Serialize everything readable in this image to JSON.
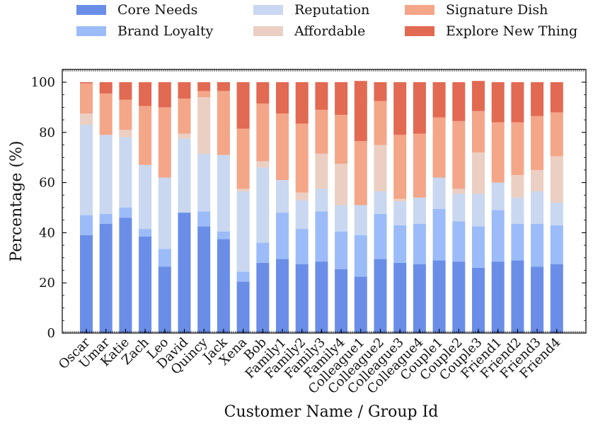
{
  "chart_data": {
    "type": "bar",
    "stacked": true,
    "title": "",
    "xlabel": "Customer Name / Group Id",
    "ylabel": "Percentage (%)",
    "ylim": [
      0,
      100
    ],
    "yticks": [
      0,
      20,
      40,
      60,
      80,
      100
    ],
    "grid": false,
    "legend_position": "top",
    "categories": [
      "Oscar",
      "Umar",
      "Katie",
      "Zach",
      "Leo",
      "David",
      "Quincy",
      "Jack",
      "Xena",
      "Bob",
      "Family1",
      "Family2",
      "Family3",
      "Family4",
      "Colleague1",
      "Colleague2",
      "Colleague3",
      "Colleague4",
      "Couple1",
      "Couple2",
      "Couple3",
      "Friend1",
      "Friend2",
      "Friend3",
      "Friend4"
    ],
    "series": [
      {
        "name": "Core Needs",
        "color": "#6a8ee8",
        "values": [
          39.0,
          43.5,
          46.0,
          38.5,
          26.5,
          48.0,
          42.5,
          37.5,
          20.5,
          28.0,
          29.5,
          27.5,
          28.5,
          25.5,
          22.5,
          29.5,
          28.0,
          27.5,
          29.0,
          28.5,
          26.0,
          28.5,
          29.0,
          26.5,
          27.5
        ]
      },
      {
        "name": "Brand Loyalty",
        "color": "#9bbcf9",
        "values": [
          8.0,
          4.0,
          4.0,
          3.0,
          7.0,
          0,
          6.0,
          3.0,
          4.0,
          8.0,
          18.5,
          14.0,
          20.0,
          15.0,
          16.5,
          18.0,
          15.0,
          16.0,
          20.5,
          16.0,
          16.5,
          20.5,
          14.5,
          17.0,
          15.5
        ]
      },
      {
        "name": "Reputation",
        "color": "#c9d7f0",
        "values": [
          36.0,
          31.5,
          28.0,
          25.5,
          28.5,
          29.5,
          23.0,
          30.5,
          32.0,
          30.0,
          13.0,
          11.5,
          9.0,
          10.5,
          12.0,
          9.0,
          9.5,
          10.5,
          12.5,
          11.0,
          13.0,
          11.0,
          10.5,
          13.0,
          9.0
        ]
      },
      {
        "name": "Affordable",
        "color": "#ebcfc2",
        "values": [
          4.5,
          0,
          3.0,
          0,
          0,
          2.0,
          22.5,
          0,
          1.0,
          2.5,
          0,
          3.0,
          14.0,
          16.5,
          0,
          18.5,
          1.0,
          0,
          0,
          2.0,
          16.5,
          0,
          9.0,
          8.5,
          18.5
        ]
      },
      {
        "name": "Signature Dish",
        "color": "#f4a688",
        "values": [
          12.0,
          16.5,
          12.0,
          23.5,
          28.0,
          14.0,
          2.5,
          25.5,
          24.0,
          23.0,
          26.5,
          27.5,
          17.5,
          19.5,
          25.5,
          17.5,
          25.5,
          25.5,
          24.0,
          27.0,
          16.5,
          24.0,
          21.0,
          21.5,
          17.5
        ]
      },
      {
        "name": "Explore New Thing",
        "color": "#e26952",
        "values": [
          0.5,
          4.5,
          7.0,
          9.5,
          10.0,
          6.5,
          3.5,
          3.5,
          18.5,
          8.5,
          12.5,
          16.5,
          11.0,
          13.0,
          24.0,
          7.5,
          21.0,
          20.5,
          14.0,
          15.5,
          12.0,
          16.0,
          16.0,
          13.5,
          12.0
        ]
      }
    ]
  }
}
